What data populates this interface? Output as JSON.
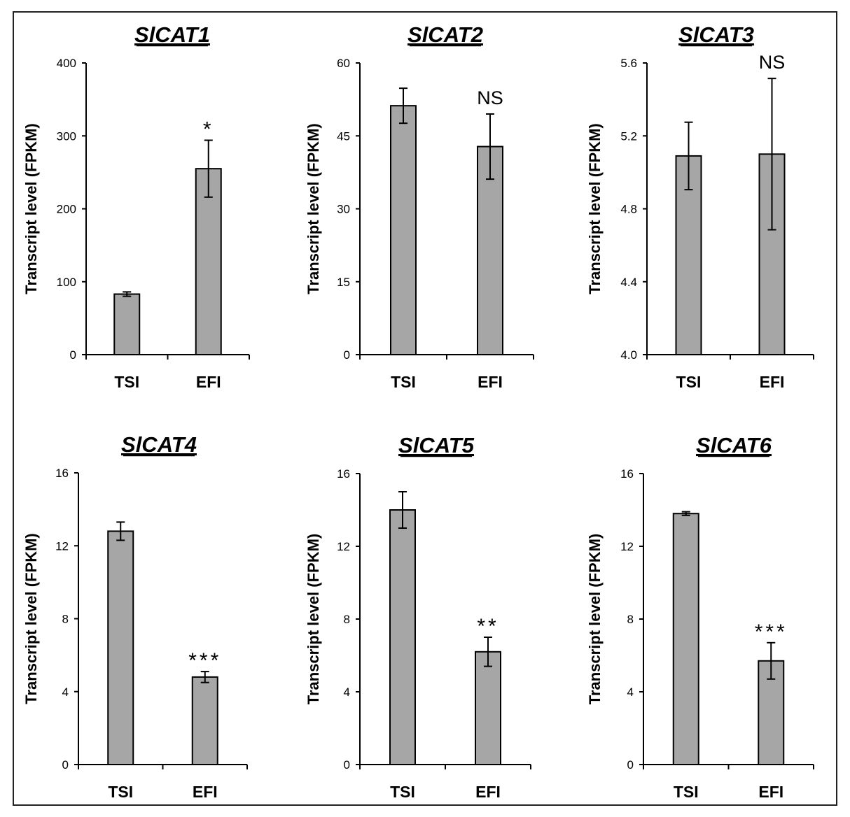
{
  "colors": {
    "bar_fill": "#a6a6a6",
    "stroke": "#000000",
    "frame": "#222222"
  },
  "chart_data": [
    {
      "type": "bar",
      "title": "SlCAT1",
      "ylabel": "Transcript level (FPKM)",
      "categories": [
        "TSI",
        "EFI"
      ],
      "values": [
        83,
        255
      ],
      "errors": [
        3,
        39
      ],
      "ylim": [
        0,
        400
      ],
      "yticks": [
        0,
        100,
        200,
        300,
        400
      ],
      "ytick_labels": [
        "0",
        "100",
        "200",
        "300",
        "400"
      ],
      "annotation": "*",
      "annotation_bar": 1
    },
    {
      "type": "bar",
      "title": "SlCAT2",
      "ylabel": "Transcript level (FPKM)",
      "categories": [
        "TSI",
        "EFI"
      ],
      "values": [
        51.2,
        42.8
      ],
      "errors": [
        3.6,
        6.7
      ],
      "ylim": [
        0,
        60
      ],
      "yticks": [
        0,
        15,
        30,
        45,
        60
      ],
      "ytick_labels": [
        "0",
        "15",
        "30",
        "45",
        "60"
      ],
      "annotation": "NS",
      "annotation_bar": 1
    },
    {
      "type": "bar",
      "title": "SlCAT3",
      "ylabel": "Transcript level (FPKM)",
      "categories": [
        "TSI",
        "EFI"
      ],
      "values": [
        5.09,
        5.1
      ],
      "errors": [
        0.185,
        0.415
      ],
      "ylim": [
        4.0,
        5.6
      ],
      "yticks": [
        4.0,
        4.4,
        4.8,
        5.2,
        5.6
      ],
      "ytick_labels": [
        "4.0",
        "4.4",
        "4.8",
        "5.2",
        "5.6"
      ],
      "annotation": "NS",
      "annotation_bar": 1
    },
    {
      "type": "bar",
      "title": "SlCAT4",
      "ylabel": "Transcript level (FPKM)",
      "categories": [
        "TSI",
        "EFI"
      ],
      "values": [
        12.8,
        4.8
      ],
      "errors": [
        0.5,
        0.3
      ],
      "ylim": [
        0,
        16
      ],
      "yticks": [
        0,
        4,
        8,
        12,
        16
      ],
      "ytick_labels": [
        "0",
        "4",
        "8",
        "12",
        "16"
      ],
      "annotation": "***",
      "annotation_bar": 1
    },
    {
      "type": "bar",
      "title": "SlCAT5",
      "ylabel": "Transcript level (FPKM)",
      "categories": [
        "TSI",
        "EFI"
      ],
      "values": [
        14.0,
        6.2
      ],
      "errors": [
        1.0,
        0.8
      ],
      "ylim": [
        0,
        16
      ],
      "yticks": [
        0,
        4,
        8,
        12,
        16
      ],
      "ytick_labels": [
        "0",
        "4",
        "8",
        "12",
        "16"
      ],
      "annotation": "**",
      "annotation_bar": 1
    },
    {
      "type": "bar",
      "title": "SlCAT6",
      "ylabel": "Transcript level (FPKM)",
      "categories": [
        "TSI",
        "EFI"
      ],
      "values": [
        13.8,
        5.7
      ],
      "errors": [
        0.1,
        1.0
      ],
      "ylim": [
        0,
        16
      ],
      "yticks": [
        0,
        4,
        8,
        12,
        16
      ],
      "ytick_labels": [
        "0",
        "4",
        "8",
        "12",
        "16"
      ],
      "annotation": "***",
      "annotation_bar": 1
    }
  ]
}
